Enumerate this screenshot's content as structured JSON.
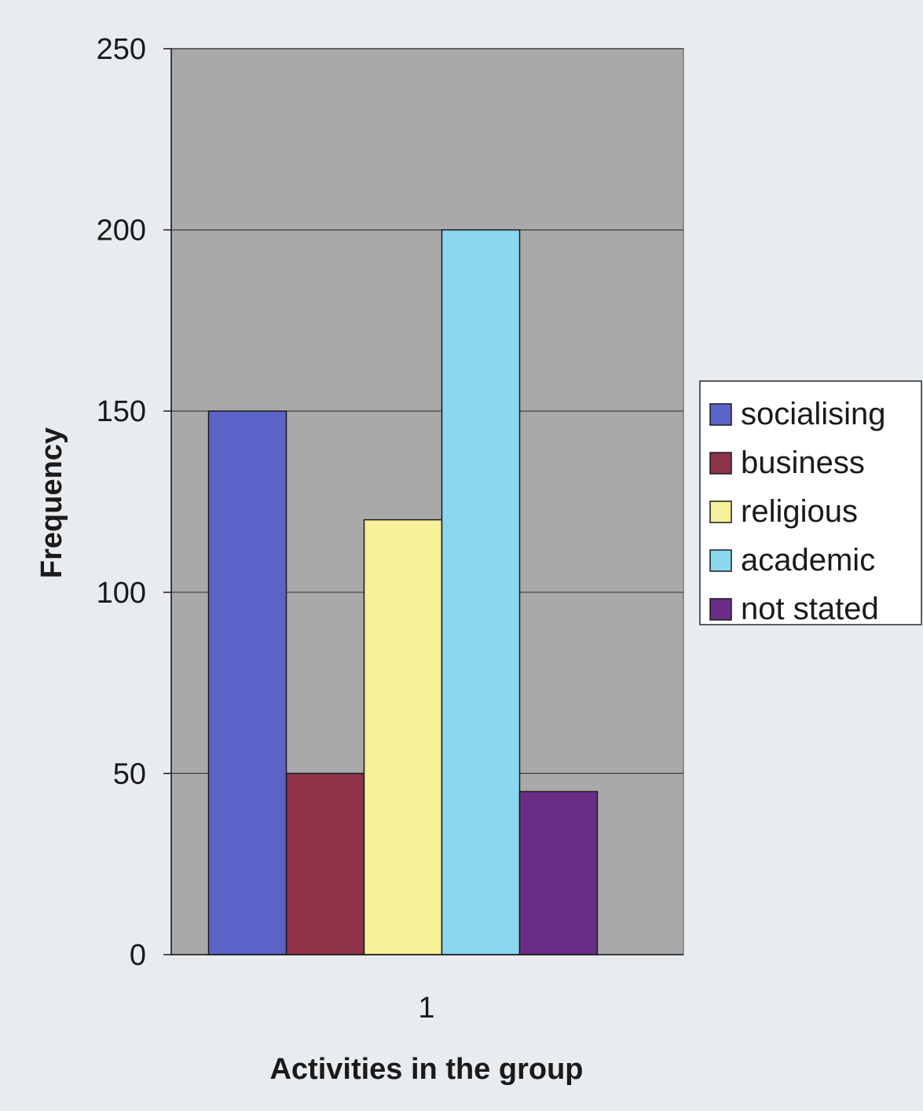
{
  "chart_data": {
    "type": "bar",
    "categories": [
      "1"
    ],
    "series": [
      {
        "name": "socialising",
        "values": [
          150
        ],
        "color": "#5b63c9"
      },
      {
        "name": "business",
        "values": [
          50
        ],
        "color": "#8e3349"
      },
      {
        "name": "religious",
        "values": [
          120
        ],
        "color": "#f6f09a"
      },
      {
        "name": "academic",
        "values": [
          200
        ],
        "color": "#8ad8ef"
      },
      {
        "name": "not stated",
        "values": [
          45
        ],
        "color": "#6a2d86"
      }
    ],
    "xlabel": "Activities in the group",
    "ylabel": "Frequency",
    "ylim": [
      0,
      250
    ],
    "yticks": [
      0,
      50,
      100,
      150,
      200,
      250
    ],
    "grid": true,
    "legend": "right",
    "plot_background": "#a9a9a9"
  }
}
